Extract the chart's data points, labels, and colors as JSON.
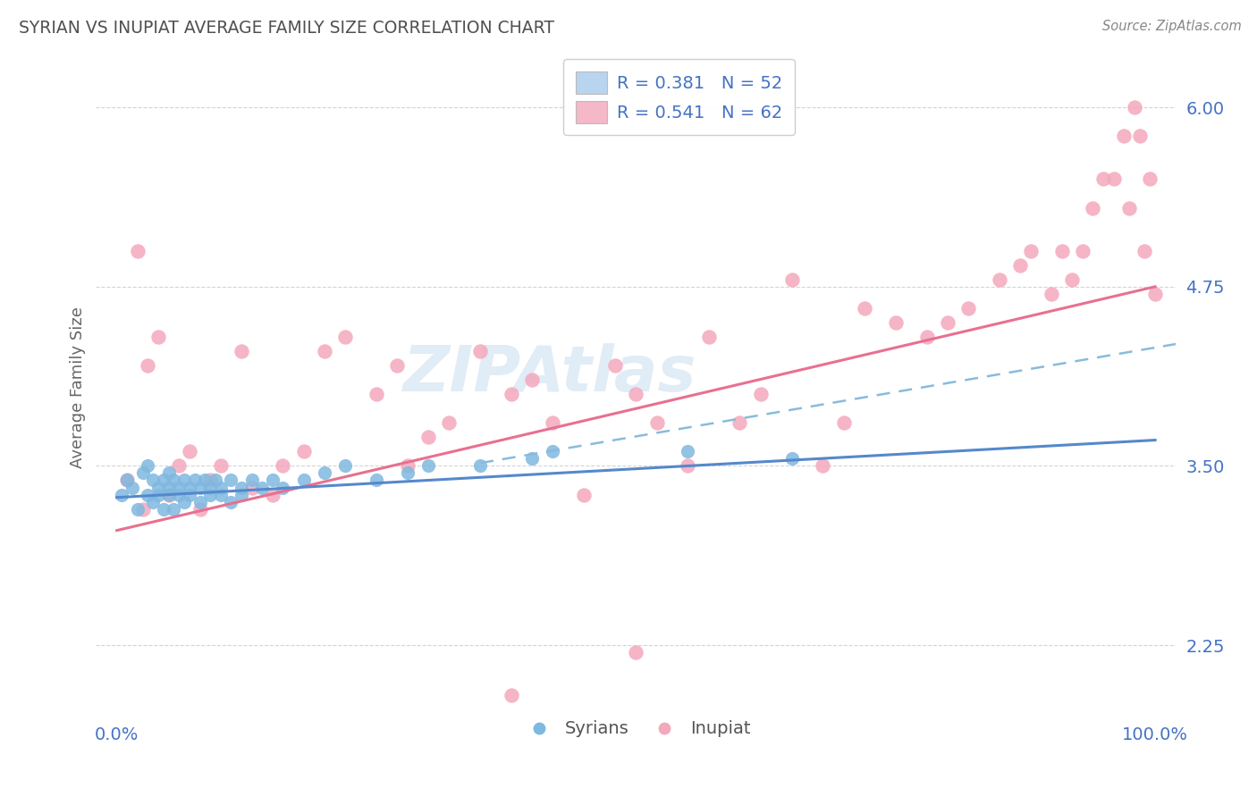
{
  "title": "SYRIAN VS INUPIAT AVERAGE FAMILY SIZE CORRELATION CHART",
  "source": "Source: ZipAtlas.com",
  "ylabel": "Average Family Size",
  "xlim": [
    -0.02,
    1.02
  ],
  "ylim": [
    1.75,
    6.35
  ],
  "yticks": [
    2.25,
    3.5,
    4.75,
    6.0
  ],
  "xticks": [
    0.0,
    1.0
  ],
  "xticklabels": [
    "0.0%",
    "100.0%"
  ],
  "legend_entries": [
    {
      "label": "R = 0.381   N = 52",
      "color": "#b8d4ee"
    },
    {
      "label": "R = 0.541   N = 62",
      "color": "#f4b8c8"
    }
  ],
  "legend_labels": [
    "Syrians",
    "Inupiat"
  ],
  "syrian_color": "#7fb8e0",
  "inupiat_color": "#f4a8bc",
  "syrian_line_color": "#5588cc",
  "inupiat_line_color": "#e87090",
  "dashed_line_color": "#88bbdd",
  "background_color": "#ffffff",
  "axis_color": "#4472c4",
  "grid_color": "#d0d0d0",
  "title_color": "#505050",
  "source_color": "#888888",
  "watermark_color": "#cce0f0",
  "syrian_scatter_x": [
    0.005,
    0.01,
    0.015,
    0.02,
    0.025,
    0.03,
    0.03,
    0.035,
    0.035,
    0.04,
    0.04,
    0.045,
    0.045,
    0.05,
    0.05,
    0.05,
    0.055,
    0.055,
    0.06,
    0.06,
    0.065,
    0.065,
    0.07,
    0.07,
    0.075,
    0.08,
    0.08,
    0.085,
    0.09,
    0.09,
    0.095,
    0.1,
    0.1,
    0.11,
    0.11,
    0.12,
    0.12,
    0.13,
    0.14,
    0.15,
    0.16,
    0.18,
    0.2,
    0.22,
    0.25,
    0.28,
    0.3,
    0.35,
    0.4,
    0.42,
    0.55,
    0.65
  ],
  "syrian_scatter_y": [
    3.3,
    3.4,
    3.35,
    3.2,
    3.45,
    3.3,
    3.5,
    3.25,
    3.4,
    3.35,
    3.3,
    3.4,
    3.2,
    3.35,
    3.45,
    3.3,
    3.4,
    3.2,
    3.35,
    3.3,
    3.4,
    3.25,
    3.35,
    3.3,
    3.4,
    3.35,
    3.25,
    3.4,
    3.35,
    3.3,
    3.4,
    3.35,
    3.3,
    3.4,
    3.25,
    3.35,
    3.3,
    3.4,
    3.35,
    3.4,
    3.35,
    3.4,
    3.45,
    3.5,
    3.4,
    3.45,
    3.5,
    3.5,
    3.55,
    3.6,
    3.6,
    3.55
  ],
  "inupiat_scatter_x": [
    0.01,
    0.02,
    0.025,
    0.03,
    0.04,
    0.05,
    0.06,
    0.07,
    0.08,
    0.09,
    0.1,
    0.12,
    0.13,
    0.15,
    0.16,
    0.18,
    0.2,
    0.22,
    0.25,
    0.27,
    0.28,
    0.3,
    0.32,
    0.35,
    0.38,
    0.4,
    0.42,
    0.45,
    0.48,
    0.5,
    0.52,
    0.55,
    0.57,
    0.6,
    0.62,
    0.65,
    0.68,
    0.7,
    0.72,
    0.75,
    0.78,
    0.8,
    0.82,
    0.85,
    0.87,
    0.88,
    0.9,
    0.91,
    0.92,
    0.93,
    0.94,
    0.95,
    0.96,
    0.97,
    0.975,
    0.98,
    0.985,
    0.99,
    0.995,
    1.0,
    0.5,
    0.38
  ],
  "inupiat_scatter_y": [
    3.4,
    5.0,
    3.2,
    4.2,
    4.4,
    3.3,
    3.5,
    3.6,
    3.2,
    3.4,
    3.5,
    4.3,
    3.35,
    3.3,
    3.5,
    3.6,
    4.3,
    4.4,
    4.0,
    4.2,
    3.5,
    3.7,
    3.8,
    4.3,
    4.0,
    4.1,
    3.8,
    3.3,
    4.2,
    4.0,
    3.8,
    3.5,
    4.4,
    3.8,
    4.0,
    4.8,
    3.5,
    3.8,
    4.6,
    4.5,
    4.4,
    4.5,
    4.6,
    4.8,
    4.9,
    5.0,
    4.7,
    5.0,
    4.8,
    5.0,
    5.3,
    5.5,
    5.5,
    5.8,
    5.3,
    6.0,
    5.8,
    5.0,
    5.5,
    4.7,
    2.2,
    1.9
  ],
  "syrian_line_x": [
    0.0,
    1.0
  ],
  "syrian_line_y": [
    3.28,
    3.68
  ],
  "inupiat_line_x": [
    0.0,
    1.0
  ],
  "inupiat_line_y": [
    3.05,
    4.75
  ],
  "dashed_line_x": [
    0.35,
    1.02
  ],
  "dashed_line_y": [
    3.52,
    4.35
  ]
}
